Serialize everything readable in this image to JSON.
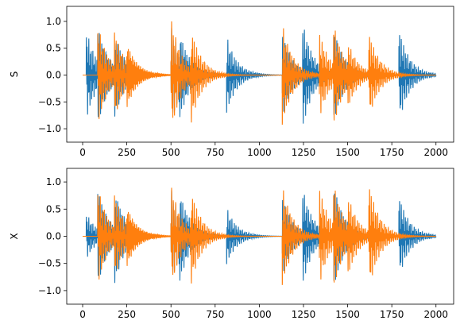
{
  "chart_data": [
    {
      "type": "line",
      "ylabel": "S",
      "xlim": [
        -90,
        2100
      ],
      "ylim": [
        -1.25,
        1.28
      ],
      "xticks": [
        0,
        250,
        500,
        750,
        1000,
        1250,
        1500,
        1750,
        2000
      ],
      "yticks": [
        -1.0,
        -0.5,
        0.0,
        0.5,
        1.0
      ],
      "ytick_labels": [
        "−1.0",
        "−0.5",
        "0.0",
        "0.5",
        "1.0"
      ],
      "series": [
        {
          "color": "#1f77b4",
          "x_range": [
            0,
            2000
          ],
          "bursts": [
            {
              "x": 20,
              "amp": 0.88
            },
            {
              "x": 85,
              "amp": 0.7
            },
            {
              "x": 180,
              "amp": 0.95
            },
            {
              "x": 500,
              "amp": 0.98
            },
            {
              "x": 545,
              "amp": 1.17
            },
            {
              "x": 815,
              "amp": 0.75
            },
            {
              "x": 1130,
              "amp": 0.8
            },
            {
              "x": 1245,
              "amp": 1.0
            },
            {
              "x": 1420,
              "amp": 0.9
            },
            {
              "x": 1790,
              "amp": 0.92
            }
          ]
        },
        {
          "color": "#ff7f0e",
          "x_range": [
            0,
            2000
          ],
          "bursts": [
            {
              "x": 85,
              "amp": 0.98
            },
            {
              "x": 180,
              "amp": 1.0
            },
            {
              "x": 250,
              "amp": 0.6
            },
            {
              "x": 500,
              "amp": 1.12
            },
            {
              "x": 610,
              "amp": 0.85
            },
            {
              "x": 1130,
              "amp": 0.98
            },
            {
              "x": 1340,
              "amp": 0.85
            },
            {
              "x": 1420,
              "amp": 1.1
            },
            {
              "x": 1500,
              "amp": 0.8
            },
            {
              "x": 1620,
              "amp": 0.78
            }
          ]
        }
      ]
    },
    {
      "type": "line",
      "ylabel": "X",
      "xlim": [
        -90,
        2100
      ],
      "ylim": [
        -1.25,
        1.25
      ],
      "xticks": [
        0,
        250,
        500,
        750,
        1000,
        1250,
        1500,
        1750,
        2000
      ],
      "yticks": [
        -1.0,
        -0.5,
        0.0,
        0.5,
        1.0
      ],
      "ytick_labels": [
        "−1.0",
        "−0.5",
        "0.0",
        "0.5",
        "1.0"
      ],
      "series": [
        {
          "color": "#1f77b4",
          "x_range": [
            0,
            2000
          ],
          "bursts": [
            {
              "x": 20,
              "amp": 0.45
            },
            {
              "x": 85,
              "amp": 0.8
            },
            {
              "x": 180,
              "amp": 1.05
            },
            {
              "x": 500,
              "amp": 0.95
            },
            {
              "x": 545,
              "amp": 1.2
            },
            {
              "x": 815,
              "amp": 0.55
            },
            {
              "x": 1130,
              "amp": 0.75
            },
            {
              "x": 1245,
              "amp": 0.9
            },
            {
              "x": 1420,
              "amp": 1.0
            },
            {
              "x": 1790,
              "amp": 0.8
            }
          ]
        },
        {
          "color": "#ff7f0e",
          "x_range": [
            0,
            2000
          ],
          "bursts": [
            {
              "x": 85,
              "amp": 0.95
            },
            {
              "x": 180,
              "amp": 0.95
            },
            {
              "x": 250,
              "amp": 0.55
            },
            {
              "x": 500,
              "amp": 1.0
            },
            {
              "x": 610,
              "amp": 0.85
            },
            {
              "x": 1130,
              "amp": 0.95
            },
            {
              "x": 1340,
              "amp": 0.95
            },
            {
              "x": 1420,
              "amp": 1.12
            },
            {
              "x": 1500,
              "amp": 0.95
            },
            {
              "x": 1620,
              "amp": 0.95
            }
          ]
        }
      ]
    }
  ]
}
